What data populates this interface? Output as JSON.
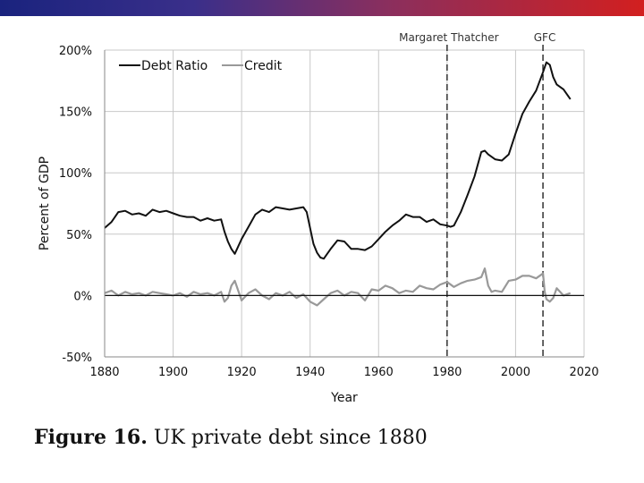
{
  "caption": {
    "label": "Figure 16.",
    "text": "UK private debt since 1880"
  },
  "chart_data": {
    "type": "line",
    "title": "",
    "xlabel": "Year",
    "ylabel": "Percent of GDP",
    "xlim": [
      1880,
      2020
    ],
    "ylim": [
      -50,
      200
    ],
    "x_ticks": [
      1880,
      1900,
      1920,
      1940,
      1960,
      1980,
      2000,
      2020
    ],
    "y_ticks": [
      -50,
      0,
      50,
      100,
      150,
      200
    ],
    "y_tick_suffix": "%",
    "grid": true,
    "legend": "top-left",
    "annotations": [
      {
        "label": "Margaret Thatcher",
        "x": 1980
      },
      {
        "label": "GFC",
        "x": 2008
      }
    ],
    "colors": {
      "debt": "#111111",
      "credit": "#999999",
      "grid": "#c8c8c8"
    },
    "series": [
      {
        "name": "Debt Ratio",
        "color": "#111111",
        "x": [
          1880,
          1882,
          1884,
          1886,
          1888,
          1890,
          1892,
          1894,
          1896,
          1898,
          1900,
          1902,
          1904,
          1906,
          1908,
          1910,
          1912,
          1914,
          1915,
          1916,
          1917,
          1918,
          1920,
          1922,
          1924,
          1926,
          1928,
          1930,
          1932,
          1934,
          1936,
          1938,
          1939,
          1940,
          1941,
          1942,
          1943,
          1944,
          1946,
          1948,
          1950,
          1952,
          1954,
          1956,
          1958,
          1960,
          1962,
          1964,
          1966,
          1968,
          1970,
          1972,
          1974,
          1976,
          1978,
          1980,
          1981,
          1982,
          1984,
          1986,
          1988,
          1990,
          1991,
          1992,
          1994,
          1996,
          1998,
          2000,
          2002,
          2004,
          2006,
          2008,
          2009,
          2010,
          2011,
          2012,
          2014,
          2016
        ],
        "values": [
          55,
          60,
          68,
          69,
          66,
          67,
          65,
          70,
          68,
          69,
          67,
          65,
          64,
          64,
          61,
          63,
          61,
          62,
          52,
          44,
          38,
          34,
          46,
          56,
          66,
          70,
          68,
          72,
          71,
          70,
          71,
          72,
          68,
          55,
          42,
          35,
          31,
          30,
          38,
          45,
          44,
          38,
          38,
          37,
          40,
          46,
          52,
          57,
          61,
          66,
          64,
          64,
          60,
          62,
          58,
          57,
          56,
          57,
          68,
          82,
          97,
          117,
          118,
          115,
          111,
          110,
          115,
          132,
          148,
          158,
          167,
          182,
          190,
          188,
          178,
          172,
          168,
          160
        ]
      },
      {
        "name": "Credit",
        "color": "#999999",
        "x": [
          1880,
          1882,
          1884,
          1886,
          1888,
          1890,
          1892,
          1894,
          1896,
          1898,
          1900,
          1902,
          1904,
          1906,
          1908,
          1910,
          1912,
          1914,
          1915,
          1916,
          1917,
          1918,
          1919,
          1920,
          1922,
          1924,
          1926,
          1928,
          1930,
          1932,
          1934,
          1936,
          1938,
          1940,
          1942,
          1944,
          1946,
          1948,
          1950,
          1952,
          1954,
          1956,
          1958,
          1960,
          1962,
          1964,
          1966,
          1968,
          1970,
          1972,
          1974,
          1976,
          1978,
          1980,
          1982,
          1984,
          1986,
          1988,
          1990,
          1991,
          1992,
          1993,
          1994,
          1996,
          1998,
          2000,
          2002,
          2004,
          2006,
          2008,
          2008.5,
          2009,
          2010,
          2011,
          2012,
          2014,
          2016
        ],
        "values": [
          2,
          4,
          0,
          3,
          1,
          2,
          0,
          3,
          2,
          1,
          0,
          2,
          -1,
          3,
          1,
          2,
          0,
          3,
          -5,
          -2,
          8,
          12,
          4,
          -4,
          2,
          5,
          0,
          -3,
          2,
          0,
          3,
          -2,
          1,
          -5,
          -8,
          -3,
          2,
          4,
          0,
          3,
          2,
          -4,
          5,
          4,
          8,
          6,
          2,
          4,
          3,
          8,
          6,
          5,
          9,
          11,
          7,
          10,
          12,
          13,
          15,
          22,
          8,
          3,
          4,
          3,
          12,
          13,
          16,
          16,
          14,
          18,
          3,
          -3,
          -5,
          -2,
          6,
          0,
          2
        ]
      }
    ]
  }
}
